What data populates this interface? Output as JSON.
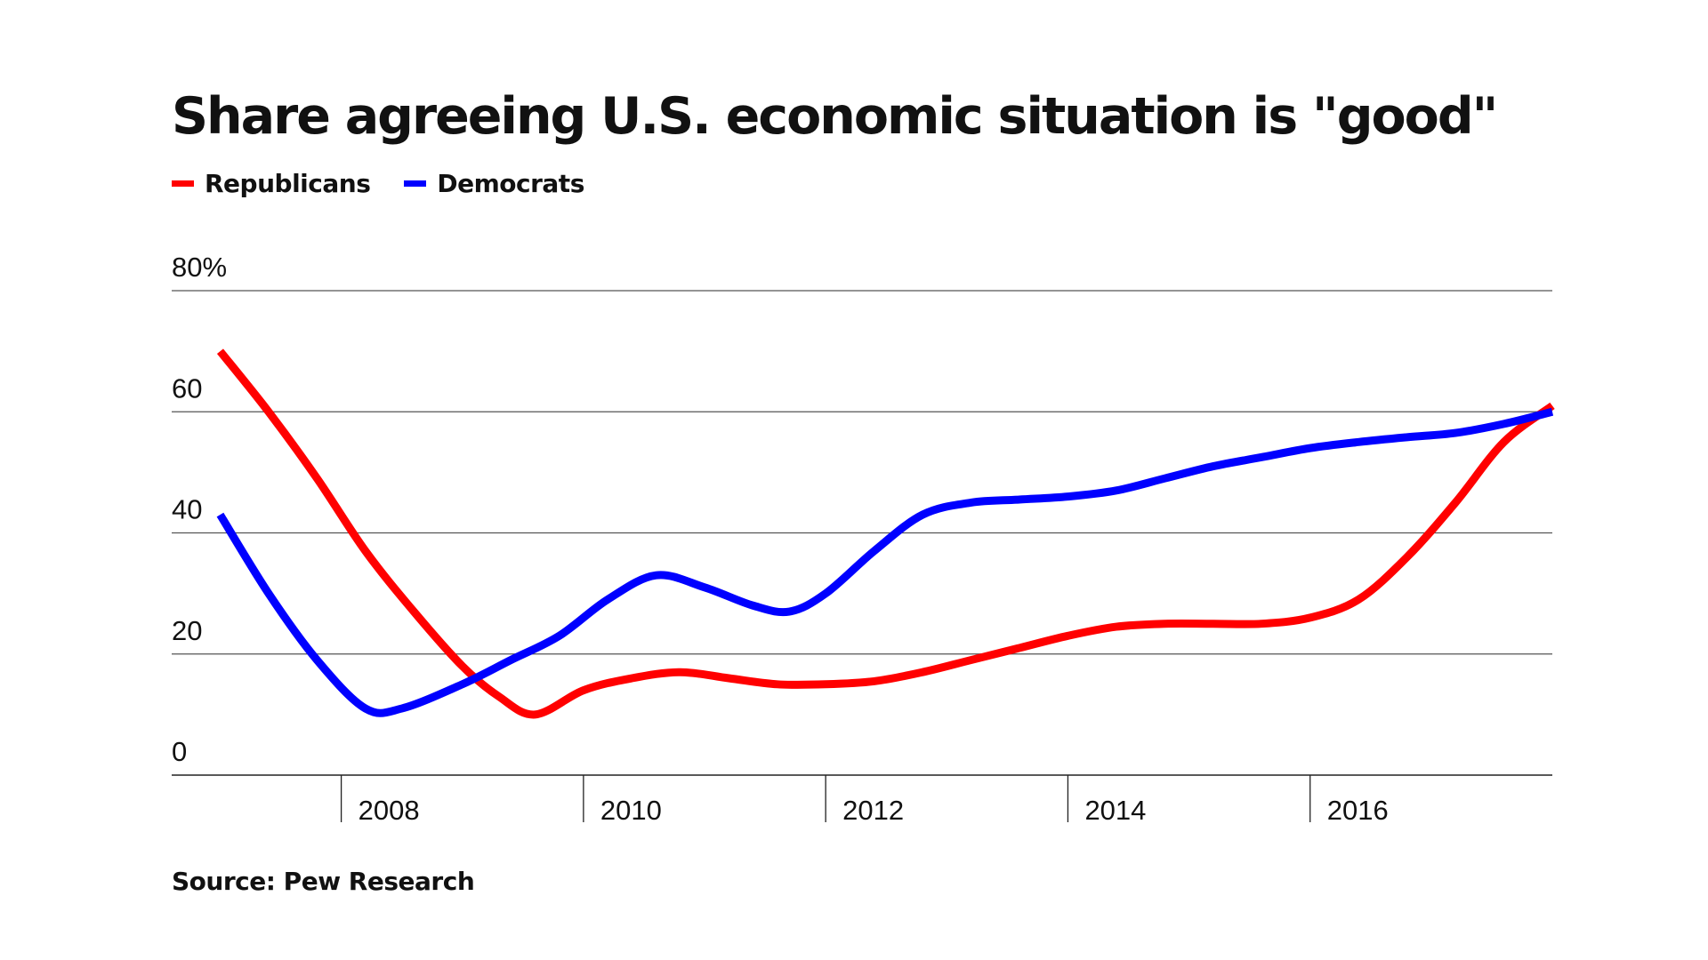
{
  "chart_data": {
    "type": "line",
    "title": "Share agreeing U.S. economic situation is \"good\"",
    "source": "Source: Pew Research",
    "x_ticks": [
      2008,
      2010,
      2012,
      2014,
      2016
    ],
    "xlim": [
      2006.6,
      2018.0
    ],
    "y_ticks": [
      {
        "value": 0,
        "label": "0"
      },
      {
        "value": 20,
        "label": "20"
      },
      {
        "value": 40,
        "label": "40"
      },
      {
        "value": 60,
        "label": "60"
      },
      {
        "value": 80,
        "label": "80%"
      }
    ],
    "ylim": [
      0,
      80
    ],
    "grid": true,
    "legend_position": "top-left",
    "series": [
      {
        "name": "Republicans",
        "color": "#ff0000",
        "points": [
          [
            2007.0,
            70
          ],
          [
            2007.4,
            60
          ],
          [
            2007.8,
            49
          ],
          [
            2008.2,
            37
          ],
          [
            2008.6,
            27
          ],
          [
            2009.0,
            18
          ],
          [
            2009.3,
            13
          ],
          [
            2009.6,
            10
          ],
          [
            2010.0,
            14
          ],
          [
            2010.4,
            16
          ],
          [
            2010.8,
            17
          ],
          [
            2011.2,
            16
          ],
          [
            2011.6,
            15
          ],
          [
            2012.0,
            15
          ],
          [
            2012.4,
            15.5
          ],
          [
            2012.8,
            17
          ],
          [
            2013.2,
            19
          ],
          [
            2013.6,
            21
          ],
          [
            2014.0,
            23
          ],
          [
            2014.4,
            24.5
          ],
          [
            2014.8,
            25
          ],
          [
            2015.2,
            25
          ],
          [
            2015.6,
            25
          ],
          [
            2016.0,
            26
          ],
          [
            2016.4,
            29
          ],
          [
            2016.8,
            36
          ],
          [
            2017.2,
            45
          ],
          [
            2017.6,
            55
          ],
          [
            2018.0,
            61
          ]
        ]
      },
      {
        "name": "Democrats",
        "color": "#0000ff",
        "points": [
          [
            2007.0,
            43
          ],
          [
            2007.4,
            30
          ],
          [
            2007.8,
            19
          ],
          [
            2008.2,
            11
          ],
          [
            2008.5,
            11
          ],
          [
            2009.0,
            15
          ],
          [
            2009.4,
            19
          ],
          [
            2009.8,
            23
          ],
          [
            2010.2,
            29
          ],
          [
            2010.6,
            33
          ],
          [
            2011.0,
            31
          ],
          [
            2011.4,
            28
          ],
          [
            2011.7,
            27
          ],
          [
            2012.0,
            30
          ],
          [
            2012.4,
            37
          ],
          [
            2012.8,
            43
          ],
          [
            2013.2,
            45
          ],
          [
            2013.6,
            45.5
          ],
          [
            2014.0,
            46
          ],
          [
            2014.4,
            47
          ],
          [
            2014.8,
            49
          ],
          [
            2015.2,
            51
          ],
          [
            2015.6,
            52.5
          ],
          [
            2016.0,
            54
          ],
          [
            2016.4,
            55
          ],
          [
            2016.8,
            55.8
          ],
          [
            2017.2,
            56.5
          ],
          [
            2017.6,
            58
          ],
          [
            2018.0,
            60
          ]
        ]
      }
    ]
  }
}
